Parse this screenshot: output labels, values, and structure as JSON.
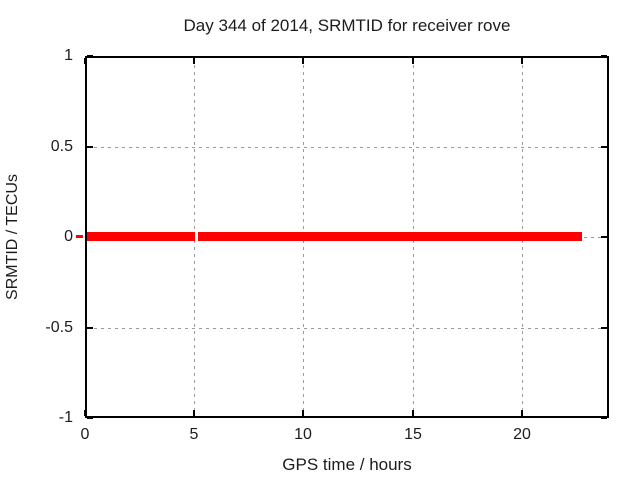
{
  "chart_data": {
    "type": "line",
    "title": "Day 344 of 2014, SRMTID for receiver rove",
    "xlabel": "GPS time / hours",
    "ylabel": "SRMTID / TECUs",
    "xlim": [
      0,
      24
    ],
    "ylim": [
      -1,
      1
    ],
    "xticks": {
      "values": [
        0,
        5,
        10,
        15,
        20
      ],
      "labels": [
        "0",
        "5",
        "10",
        "15",
        "20"
      ]
    },
    "yticks": {
      "values": [
        -1,
        -0.5,
        0,
        0.5,
        1
      ],
      "labels": [
        "-1",
        "-0.5",
        "0",
        "0.5",
        "1"
      ]
    },
    "grid": {
      "show": true,
      "style": "dashed",
      "color": "#9b9b9b"
    },
    "legend_position": "none",
    "background_color": "#ffffff",
    "axis_color": "#000000",
    "text_color": "#1c1c1c",
    "series": [
      {
        "name": "SRMTID",
        "color": "#ff0000",
        "y_value": 0,
        "segments": [
          {
            "x0": -0.41,
            "x1": -0.09,
            "y": 0,
            "lw": 3
          },
          {
            "x0": 0.09,
            "x1": 5.02,
            "y": 0,
            "lw": 9
          },
          {
            "x0": 5.19,
            "x1": 22.77,
            "y": 0,
            "lw": 9
          }
        ]
      }
    ]
  }
}
